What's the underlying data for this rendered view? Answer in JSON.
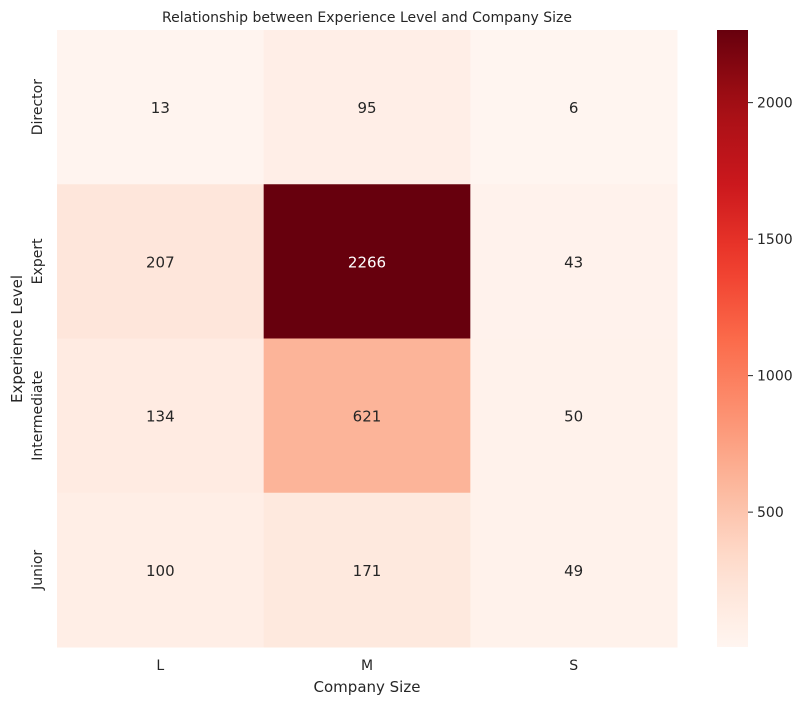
{
  "chart_data": {
    "type": "heatmap",
    "title": "Relationship between Experience Level and Company Size",
    "xlabel": "Company Size",
    "ylabel": "Experience Level",
    "x_categories": [
      "L",
      "M",
      "S"
    ],
    "y_categories": [
      "Director",
      "Expert",
      "Intermediate",
      "Junior"
    ],
    "values": [
      [
        13,
        95,
        6
      ],
      [
        207,
        2266,
        43
      ],
      [
        134,
        621,
        50
      ],
      [
        100,
        171,
        49
      ]
    ],
    "colormap": "Reds",
    "colorbar": {
      "min": 6,
      "max": 2266,
      "ticks": [
        500,
        1000,
        1500,
        2000
      ]
    },
    "annotations": true,
    "grid": false
  }
}
